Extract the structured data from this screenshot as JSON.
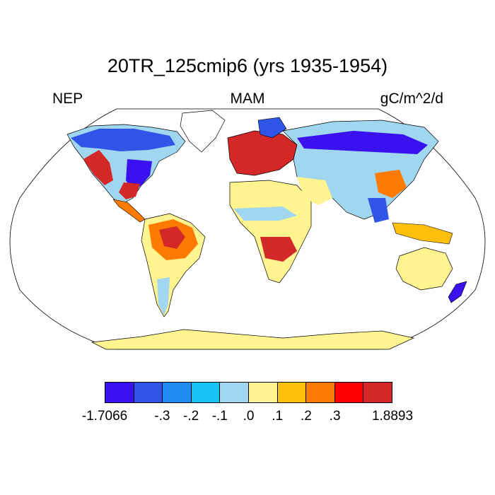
{
  "title": "20TR_125cmip6 (yrs 1935-1954)",
  "left_label": "NEP",
  "center_label": "MAM",
  "right_label": "gC/m^2/d",
  "colorbar": {
    "colors": [
      "#3a12f0",
      "#2e55e5",
      "#1f8cf5",
      "#15c3f5",
      "#a1d6f0",
      "#fff48f",
      "#ffbf0f",
      "#ff7a00",
      "#ff0000",
      "#d42727"
    ],
    "tick_labels": [
      "-1.7066",
      "-.3",
      "-.2",
      "-.1",
      ".0",
      ".1",
      ".2",
      ".3",
      "1.8893"
    ]
  }
}
